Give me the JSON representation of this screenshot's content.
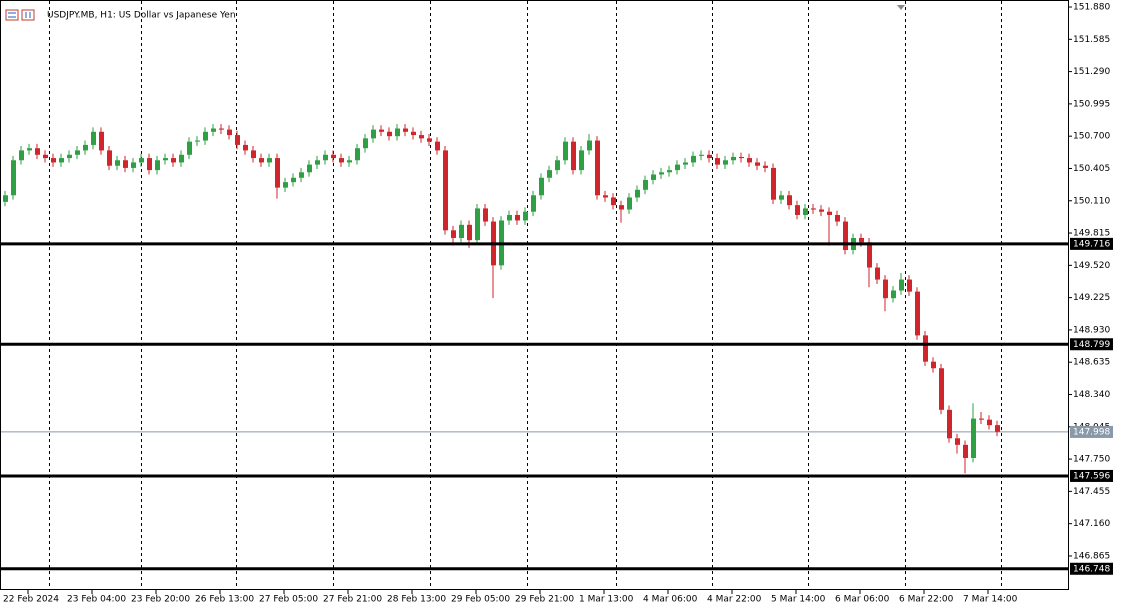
{
  "chart_data": {
    "type": "candlestick",
    "title": "USDJPY.MB, H1:  US Dollar vs Japanese Yen",
    "bull_color": "#2ea043",
    "bear_color": "#d0262b",
    "ylim": [
      146.554,
      151.944
    ],
    "yticks": [
      {
        "value": 151.88,
        "label": "151.880"
      },
      151.585,
      {
        "value": 151.29,
        "label": "151.290"
      },
      150.995,
      {
        "value": 150.7,
        "label": "150.700"
      },
      150.405,
      {
        "value": 150.11,
        "label": "150.110"
      },
      149.815,
      {
        "value": 149.52,
        "label": "149.520"
      },
      149.225,
      {
        "value": 148.93,
        "label": "148.930"
      },
      148.635,
      {
        "value": 148.34,
        "label": "148.340"
      },
      148.045,
      {
        "value": 147.75,
        "label": "147.750"
      },
      147.455,
      {
        "value": 147.16,
        "label": "147.160"
      },
      146.865
    ],
    "x_labels": [
      "22 Feb 2024",
      "23 Feb 04:00",
      "23 Feb 20:00",
      "26 Feb 13:00",
      "27 Feb 05:00",
      "27 Feb 21:00",
      "28 Feb 13:00",
      "29 Feb 05:00",
      "29 Feb 21:00",
      "1 Mar 13:00",
      "4 Mar 06:00",
      "4 Mar 22:00",
      "5 Mar 14:00",
      "6 Mar 06:00",
      "6 Mar 22:00",
      "7 Mar 14:00"
    ],
    "levels": [
      149.716,
      148.799,
      147.596,
      146.748
    ],
    "current_price": 147.998,
    "open": [
      150.1,
      150.16,
      150.48,
      150.57,
      150.59,
      150.53,
      150.5,
      150.46,
      150.5,
      150.53,
      150.57,
      150.62,
      150.74,
      150.57,
      150.43,
      150.48,
      150.41,
      150.46,
      150.5,
      150.39,
      150.48,
      150.5,
      150.46,
      150.53,
      150.65,
      150.66,
      150.74,
      150.77,
      150.76,
      150.71,
      150.62,
      150.57,
      150.5,
      150.46,
      150.5,
      150.23,
      150.28,
      150.32,
      150.37,
      150.44,
      150.48,
      150.53,
      150.5,
      150.46,
      150.48,
      150.59,
      150.68,
      150.76,
      150.74,
      150.7,
      150.77,
      150.74,
      150.71,
      150.68,
      150.65,
      150.57,
      149.84,
      149.77,
      149.89,
      149.75,
      150.04,
      149.92,
      149.52,
      149.93,
      149.98,
      149.93,
      150.01,
      150.16,
      150.32,
      150.39,
      150.48,
      150.65,
      150.39,
      150.57,
      150.66,
      150.16,
      150.14,
      150.07,
      150.03,
      150.14,
      150.21,
      150.3,
      150.35,
      150.37,
      150.39,
      150.44,
      150.46,
      150.52,
      150.53,
      150.5,
      150.44,
      150.48,
      150.51,
      150.5,
      150.46,
      150.43,
      150.41,
      150.12,
      150.16,
      150.07,
      149.98,
      150.04,
      150.03,
      150.01,
      149.98,
      149.92,
      149.66,
      149.77,
      149.73,
      149.5,
      149.39,
      149.22,
      149.29,
      149.39,
      149.28,
      148.88,
      148.64,
      148.58,
      148.2,
      147.94,
      147.88,
      147.76,
      148.12,
      148.11,
      148.06
    ],
    "high": [
      150.2,
      150.52,
      150.61,
      150.63,
      150.63,
      150.57,
      150.54,
      150.54,
      150.57,
      150.61,
      150.66,
      150.78,
      150.78,
      150.61,
      150.52,
      150.52,
      150.5,
      150.54,
      150.54,
      150.52,
      150.54,
      150.54,
      150.57,
      150.69,
      150.7,
      150.78,
      150.81,
      150.81,
      150.8,
      150.75,
      150.66,
      150.61,
      150.54,
      150.54,
      150.54,
      150.32,
      150.36,
      150.41,
      150.48,
      150.52,
      150.57,
      150.57,
      150.54,
      150.52,
      150.63,
      150.72,
      150.8,
      150.8,
      150.78,
      150.81,
      150.81,
      150.78,
      150.75,
      150.72,
      150.69,
      150.61,
      149.88,
      149.93,
      149.93,
      150.08,
      150.08,
      149.96,
      149.97,
      150.02,
      150.02,
      150.05,
      150.2,
      150.36,
      150.43,
      150.52,
      150.69,
      150.69,
      150.61,
      150.72,
      150.7,
      150.2,
      150.18,
      150.11,
      150.18,
      150.25,
      150.34,
      150.39,
      150.41,
      150.43,
      150.48,
      150.5,
      150.56,
      150.57,
      150.57,
      150.54,
      150.52,
      150.55,
      150.55,
      150.54,
      150.5,
      150.47,
      150.45,
      150.2,
      150.2,
      150.11,
      150.08,
      150.08,
      150.07,
      150.05,
      150.02,
      149.96,
      149.81,
      149.81,
      149.77,
      149.54,
      149.43,
      149.33,
      149.45,
      149.43,
      149.32,
      148.92,
      148.68,
      148.62,
      148.24,
      147.98,
      147.92,
      148.26,
      148.18,
      148.15,
      148.1
    ],
    "low": [
      150.06,
      150.12,
      150.44,
      150.53,
      150.49,
      150.46,
      150.42,
      150.42,
      150.46,
      150.49,
      150.53,
      150.58,
      150.53,
      150.39,
      150.39,
      150.37,
      150.37,
      150.42,
      150.35,
      150.35,
      150.44,
      150.42,
      150.42,
      150.49,
      150.61,
      150.62,
      150.7,
      150.72,
      150.67,
      150.58,
      150.53,
      150.46,
      150.42,
      150.42,
      150.13,
      150.19,
      150.24,
      150.28,
      150.33,
      150.4,
      150.44,
      150.46,
      150.42,
      150.42,
      150.44,
      150.55,
      150.64,
      150.7,
      150.66,
      150.66,
      150.7,
      150.67,
      150.64,
      150.61,
      150.53,
      149.8,
      149.7,
      149.73,
      149.68,
      149.71,
      149.88,
      149.22,
      149.48,
      149.89,
      149.89,
      149.89,
      149.97,
      150.12,
      150.28,
      150.35,
      150.44,
      150.35,
      150.35,
      150.53,
      150.12,
      150.1,
      150.03,
      149.91,
      149.99,
      150.1,
      150.17,
      150.26,
      150.31,
      150.33,
      150.35,
      150.4,
      150.42,
      150.48,
      150.46,
      150.4,
      150.4,
      150.44,
      150.46,
      150.42,
      150.39,
      150.37,
      150.08,
      150.08,
      150.03,
      149.94,
      149.94,
      149.99,
      149.97,
      149.7,
      149.88,
      149.62,
      149.62,
      149.69,
      149.32,
      149.35,
      149.1,
      149.18,
      149.25,
      149.24,
      148.84,
      148.6,
      148.54,
      148.16,
      147.9,
      147.8,
      147.62,
      147.72,
      148.07,
      148.02,
      147.96
    ],
    "close": [
      150.16,
      150.48,
      150.57,
      150.59,
      150.53,
      150.5,
      150.46,
      150.5,
      150.53,
      150.57,
      150.62,
      150.74,
      150.57,
      150.43,
      150.48,
      150.41,
      150.46,
      150.5,
      150.39,
      150.48,
      150.5,
      150.46,
      150.53,
      150.65,
      150.66,
      150.74,
      150.77,
      150.76,
      150.71,
      150.62,
      150.57,
      150.5,
      150.46,
      150.5,
      150.23,
      150.28,
      150.32,
      150.37,
      150.44,
      150.48,
      150.53,
      150.5,
      150.46,
      150.48,
      150.59,
      150.68,
      150.76,
      150.74,
      150.7,
      150.77,
      150.74,
      150.71,
      150.68,
      150.65,
      150.57,
      149.84,
      149.77,
      149.89,
      149.75,
      150.04,
      149.92,
      149.52,
      149.93,
      149.98,
      149.93,
      150.01,
      150.16,
      150.32,
      150.39,
      150.48,
      150.65,
      150.39,
      150.57,
      150.66,
      150.16,
      150.14,
      150.07,
      150.03,
      150.14,
      150.21,
      150.3,
      150.35,
      150.37,
      150.39,
      150.44,
      150.46,
      150.52,
      150.53,
      150.5,
      150.44,
      150.48,
      150.51,
      150.5,
      150.46,
      150.43,
      150.41,
      150.12,
      150.16,
      150.07,
      149.98,
      150.04,
      150.03,
      150.01,
      149.98,
      149.92,
      149.66,
      149.77,
      149.73,
      149.5,
      149.39,
      149.22,
      149.29,
      149.39,
      149.28,
      148.88,
      148.64,
      148.58,
      148.2,
      147.94,
      147.88,
      147.76,
      148.12,
      148.11,
      148.06,
      148.0
    ]
  }
}
